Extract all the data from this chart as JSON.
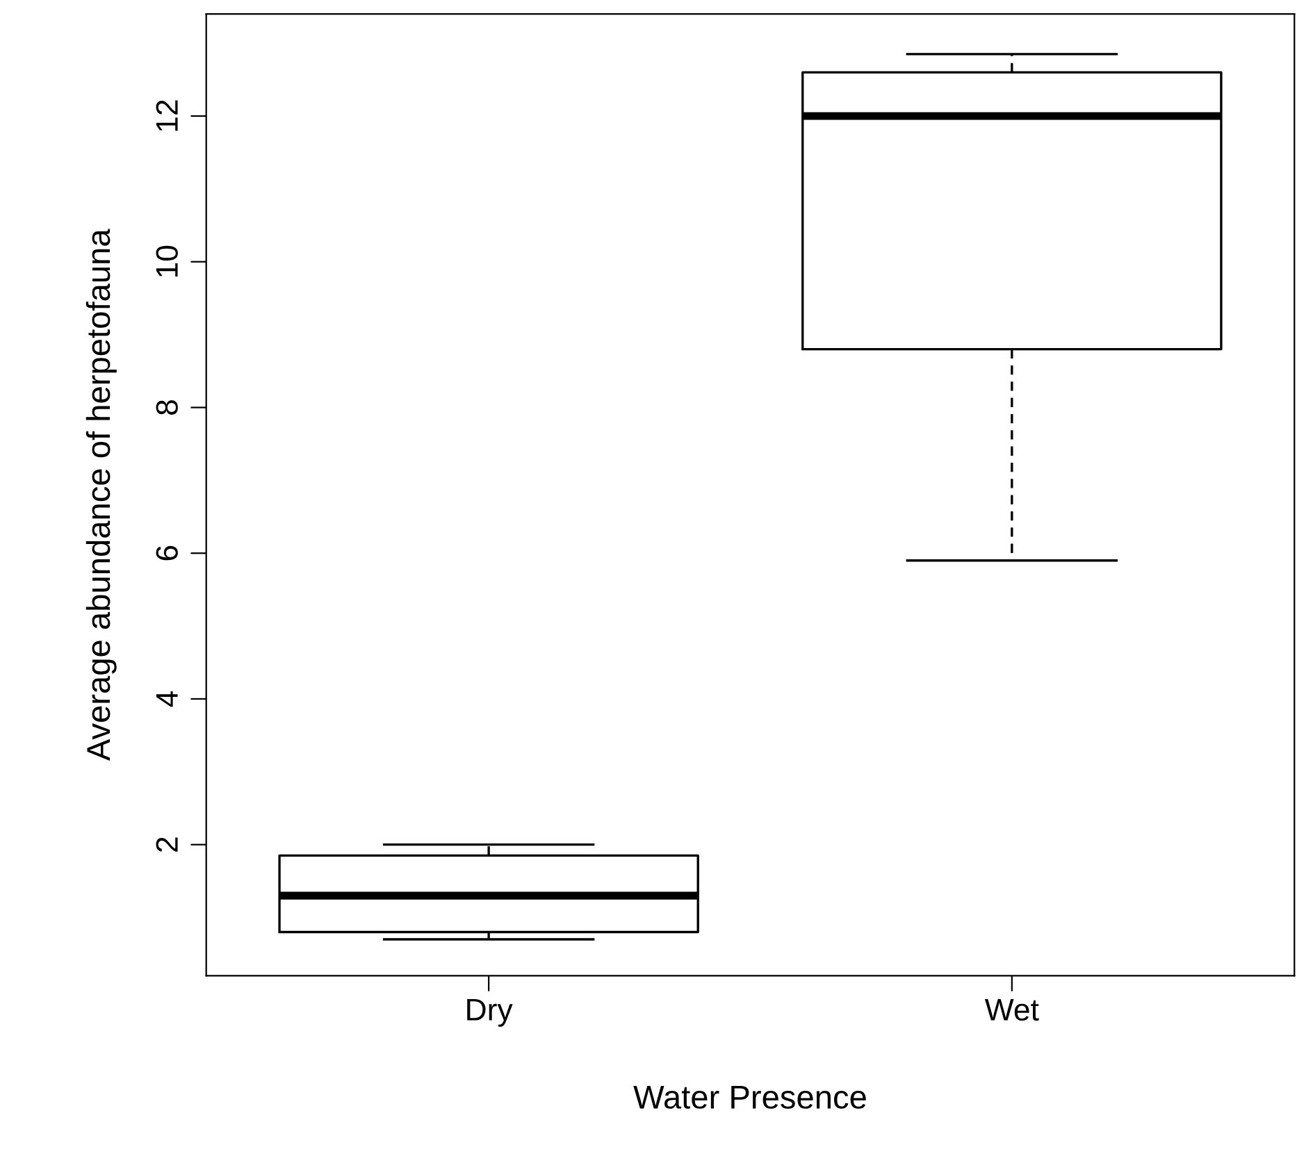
{
  "chart_data": {
    "type": "box",
    "xlabel": "Water Presence",
    "ylabel": "Average abundance of herpetofauna",
    "categories": [
      "Dry",
      "Wet"
    ],
    "boxes": [
      {
        "low": 0.7,
        "q1": 0.8,
        "median": 1.3,
        "q3": 1.85,
        "high": 2.0
      },
      {
        "low": 5.9,
        "q1": 8.8,
        "median": 12.0,
        "q3": 12.6,
        "high": 12.85
      }
    ],
    "ylim": [
      0.2,
      13.4
    ],
    "yticks": [
      2,
      4,
      6,
      8,
      10,
      12
    ],
    "grid": false,
    "legend": false
  }
}
